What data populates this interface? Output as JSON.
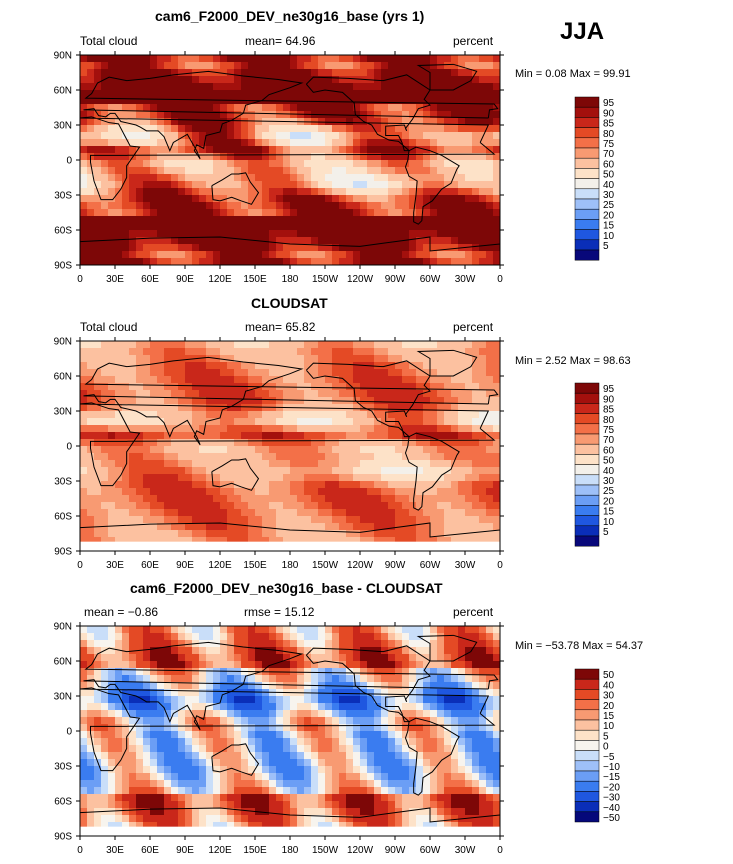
{
  "season": "JJA",
  "colors": {
    "abs_palette": [
      "#08087a",
      "#0a2eb8",
      "#1f57e0",
      "#3a7cf0",
      "#6b9ef5",
      "#9ec0f8",
      "#c9def9",
      "#f3f0ea",
      "#fde2c8",
      "#fcc1a0",
      "#f89a72",
      "#f37048",
      "#e44a25",
      "#c9271a",
      "#a3100d",
      "#7d0707"
    ],
    "diff_palette": [
      "#05087a",
      "#0a2eb8",
      "#1f57e0",
      "#3a7cf0",
      "#6b9ef5",
      "#9ec0f8",
      "#c9def9",
      "#f7f4ee",
      "#fde2c8",
      "#fcc1a0",
      "#f89a72",
      "#f37048",
      "#e44a25",
      "#c9271a",
      "#7d0707"
    ]
  },
  "chart_data": [
    {
      "type": "heatmap",
      "title": "cam6_F2000_DEV_ne30g16_base (yrs 1)",
      "left_label": "Total cloud",
      "center_label": "mean=  64.96",
      "right_label": "percent",
      "min_max": "Min =   0.08 Max =  99.91",
      "x_ticks": [
        "0",
        "30E",
        "60E",
        "90E",
        "120E",
        "150E",
        "180",
        "150W",
        "120W",
        "90W",
        "60W",
        "30W",
        "0"
      ],
      "y_ticks": [
        "90N",
        "60N",
        "30N",
        "0",
        "30S",
        "60S",
        "90S"
      ],
      "colorbar_levels": [
        "95",
        "90",
        "85",
        "80",
        "75",
        "70",
        "60",
        "50",
        "40",
        "30",
        "25",
        "20",
        "15",
        "10",
        "5"
      ],
      "field_kind": "model"
    },
    {
      "type": "heatmap",
      "title": "CLOUDSAT",
      "left_label": "Total cloud",
      "center_label": "mean=  65.82",
      "right_label": "percent",
      "min_max": "Min =   2.52 Max =  98.63",
      "x_ticks": [
        "0",
        "30E",
        "60E",
        "90E",
        "120E",
        "150E",
        "180",
        "150W",
        "120W",
        "90W",
        "60W",
        "30W",
        "0"
      ],
      "y_ticks": [
        "90N",
        "60N",
        "30N",
        "0",
        "30S",
        "60S",
        "90S"
      ],
      "colorbar_levels": [
        "95",
        "90",
        "85",
        "80",
        "75",
        "70",
        "60",
        "50",
        "40",
        "30",
        "25",
        "20",
        "15",
        "10",
        "5"
      ],
      "field_kind": "obs"
    },
    {
      "type": "heatmap",
      "title": "cam6_F2000_DEV_ne30g16_base - CLOUDSAT",
      "left_label": "mean =  −0.86",
      "center_label": "rmse =  15.12",
      "right_label": "percent",
      "min_max": "Min = −53.78 Max =  54.37",
      "x_ticks": [
        "0",
        "30E",
        "60E",
        "90E",
        "120E",
        "150E",
        "180",
        "150W",
        "120W",
        "90W",
        "60W",
        "30W",
        "0"
      ],
      "y_ticks": [
        "90N",
        "60N",
        "30N",
        "0",
        "30S",
        "60S",
        "90S"
      ],
      "colorbar_levels": [
        "50",
        "40",
        "30",
        "20",
        "15",
        "10",
        "5",
        "0",
        "−5",
        "−10",
        "−15",
        "−20",
        "−30",
        "−40",
        "−50"
      ],
      "field_kind": "diff"
    }
  ]
}
